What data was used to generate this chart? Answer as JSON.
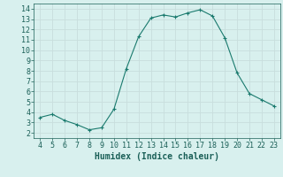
{
  "x": [
    4,
    5,
    6,
    7,
    8,
    9,
    10,
    11,
    12,
    13,
    14,
    15,
    16,
    17,
    18,
    19,
    20,
    21,
    22,
    23
  ],
  "y": [
    3.5,
    3.8,
    3.2,
    2.8,
    2.3,
    2.5,
    4.3,
    8.2,
    11.3,
    13.1,
    13.4,
    13.2,
    13.6,
    13.9,
    13.3,
    11.2,
    7.8,
    5.8,
    5.2,
    4.6
  ],
  "line_color": "#1a7a6e",
  "bg_color": "#d8f0ee",
  "grid_color": "#c8dedd",
  "xlabel": "Humidex (Indice chaleur)",
  "xlim": [
    3.5,
    23.5
  ],
  "ylim": [
    1.5,
    14.5
  ],
  "xticks": [
    4,
    5,
    6,
    7,
    8,
    9,
    10,
    11,
    12,
    13,
    14,
    15,
    16,
    17,
    18,
    19,
    20,
    21,
    22,
    23
  ],
  "yticks": [
    2,
    3,
    4,
    5,
    6,
    7,
    8,
    9,
    10,
    11,
    12,
    13,
    14
  ],
  "tick_color": "#1a5f57",
  "label_fontsize": 7,
  "tick_fontsize": 6
}
